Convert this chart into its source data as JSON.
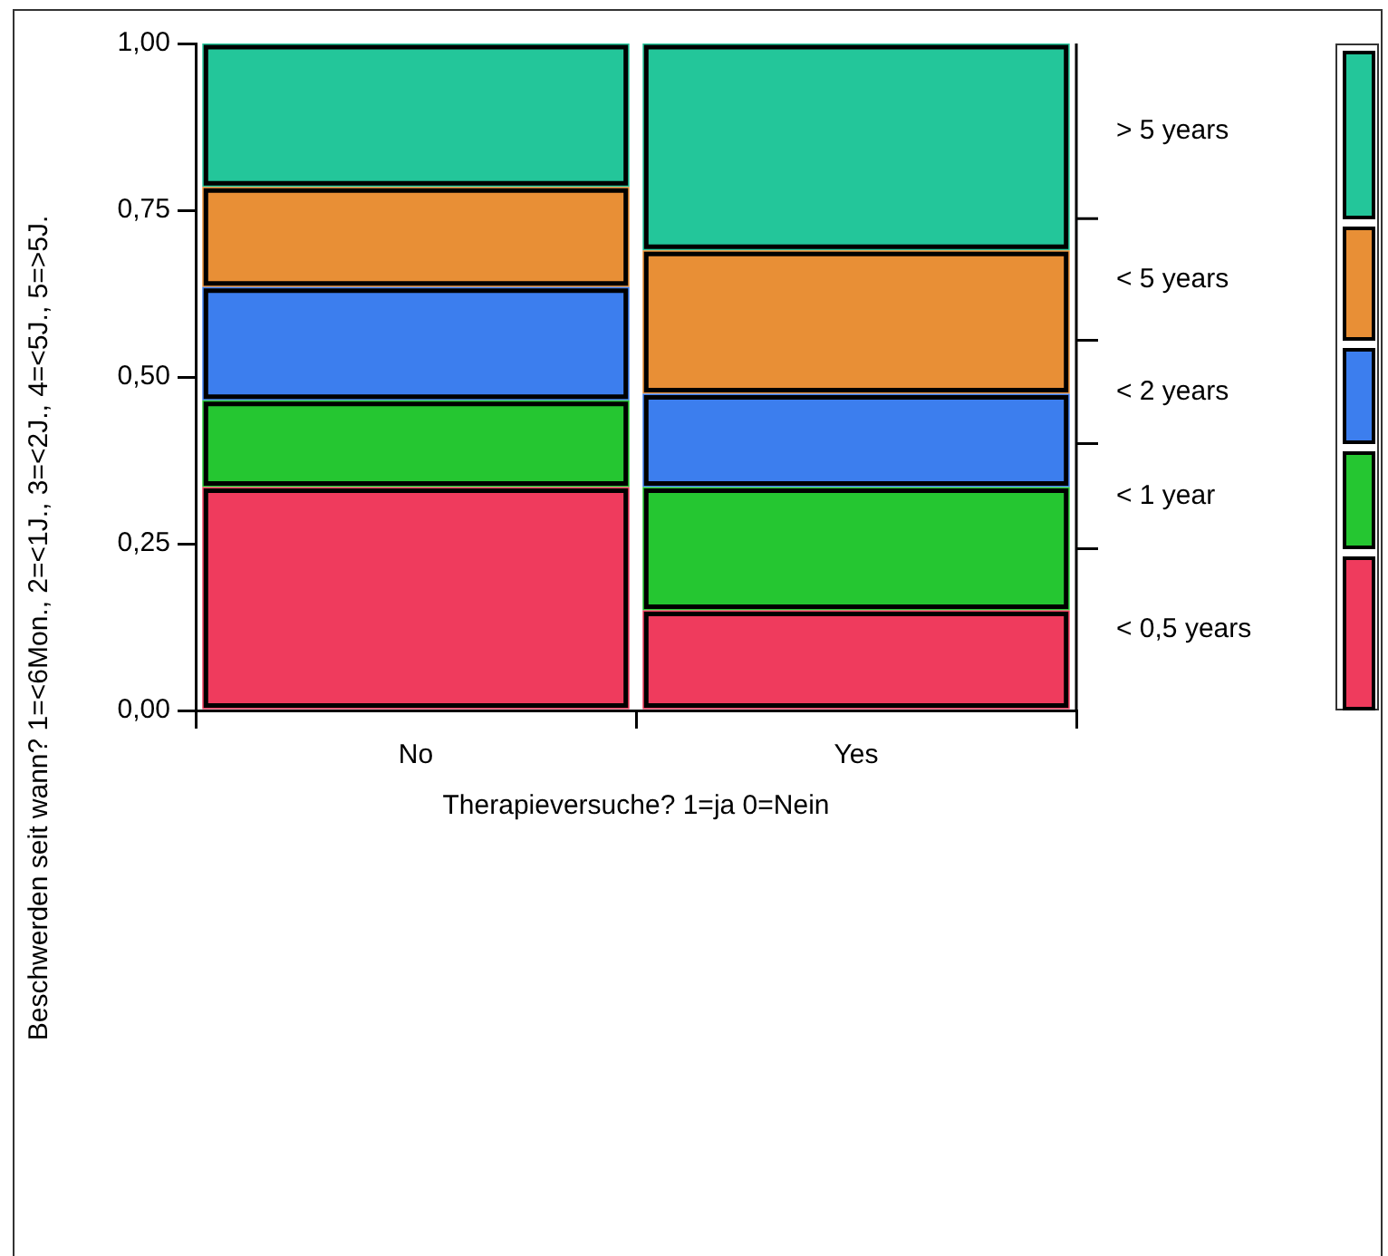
{
  "chart_data": {
    "type": "bar",
    "stacked": true,
    "xlabel": "Therapieversuche? 1=ja 0=Nein",
    "ylabel": "Beschwerden seit wann? 1=<6Mon., 2=<1J., 3=<2J., 4=<5J., 5=>5J.",
    "categories": [
      "No",
      "Yes"
    ],
    "series": [
      {
        "name": "< 0,5 years",
        "color": "#ef3b5d",
        "values": [
          0.335,
          0.15
        ]
      },
      {
        "name": "< 1 year",
        "color": "#25c631",
        "values": [
          0.13,
          0.185
        ]
      },
      {
        "name": "< 2 years",
        "color": "#3c7eee",
        "values": [
          0.17,
          0.14
        ]
      },
      {
        "name": "< 5 years",
        "color": "#e88f36",
        "values": [
          0.15,
          0.215
        ]
      },
      {
        "name": "> 5 years",
        "color": "#23c69a",
        "values": [
          0.215,
          0.31
        ]
      }
    ],
    "ylim": [
      0,
      1
    ],
    "yticks": [
      {
        "value": 0,
        "label": "0,00"
      },
      {
        "value": 0.25,
        "label": "0,25"
      },
      {
        "value": 0.5,
        "label": "0,50"
      },
      {
        "value": 0.75,
        "label": "0,75"
      },
      {
        "value": 1,
        "label": "1,00"
      }
    ],
    "grid": false,
    "legend": "right"
  }
}
